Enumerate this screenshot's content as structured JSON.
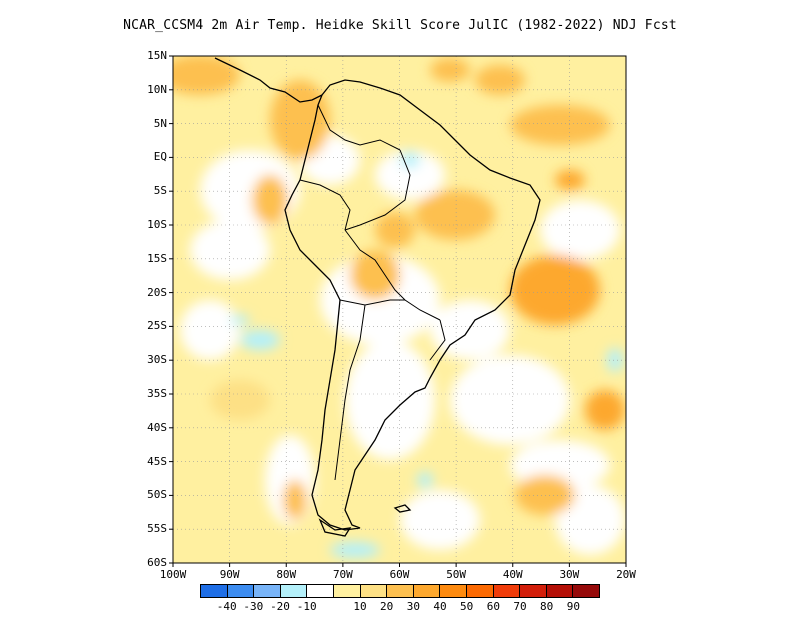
{
  "title": "NCAR_CCSM4  2m Air Temp. Heidke Skill Score JulIC (1982-2022) NDJ Fcst",
  "map": {
    "lat_labels": [
      "15N",
      "10N",
      "5N",
      "EQ",
      "5S",
      "10S",
      "15S",
      "20S",
      "25S",
      "30S",
      "35S",
      "40S",
      "45S",
      "50S",
      "55S",
      "60S"
    ],
    "lon_labels": [
      "100W",
      "90W",
      "80W",
      "70W",
      "60W",
      "50W",
      "40W",
      "30W",
      "20W"
    ],
    "lat_range": [
      -60,
      15
    ],
    "lon_range": [
      -100,
      -20
    ],
    "grid": "dotted"
  },
  "colorbar": {
    "colors": [
      "#1e6ee6",
      "#3c8cf0",
      "#78b4f8",
      "#b4f0fa",
      "#ffffff",
      "#fff0a0",
      "#fde085",
      "#fdc050",
      "#fda82e",
      "#fd8a0f",
      "#fc6a02",
      "#f03c0a",
      "#d21e0a",
      "#b40f06",
      "#960a0a"
    ],
    "labels": [
      "-40",
      "-30",
      "-20",
      "-10",
      "10",
      "20",
      "30",
      "40",
      "50",
      "60",
      "70",
      "80",
      "90"
    ]
  }
}
